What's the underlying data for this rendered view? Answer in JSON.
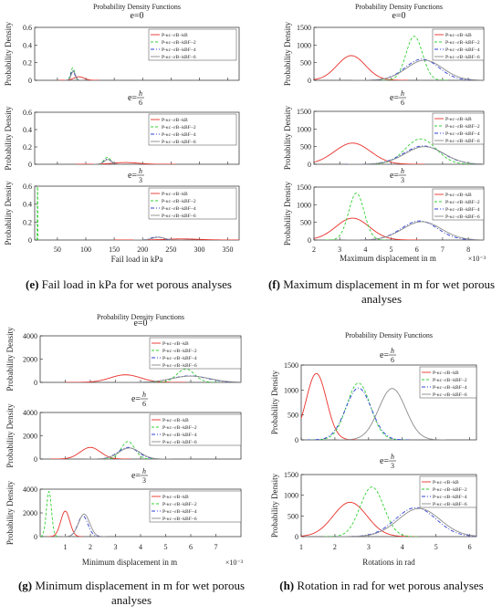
{
  "colors": {
    "red": "#e8302a",
    "green": "#33d033",
    "blue": "#2e3fd6",
    "gray": "#8a8a8a",
    "axis": "#262626"
  },
  "legend_labels": [
    "P-κc−εB−kB",
    "P-κc−εB−kBF−2",
    "P-κc−εB−kBF−4",
    "P-κc−εB−kBF−6"
  ],
  "captions": [
    {
      "letter": "(e)",
      "text": "Fail load in kPa for wet porous analyses"
    },
    {
      "letter": "(f)",
      "text": "Maximum displacement in m for wet porous analyses"
    },
    {
      "letter": "(g)",
      "text": "Minimum displacement in m for wet porous analyses"
    },
    {
      "letter": "(h)",
      "text": "Rotation in rad for wet porous analyses"
    }
  ],
  "chart_data": [
    {
      "type": "line",
      "title": "Probability Density Functions",
      "xlabel": "Fail load in kPa",
      "ylabel": "Probability Density",
      "xlim": [
        10,
        370
      ],
      "xticks": [
        50,
        100,
        150,
        200,
        250,
        300,
        350
      ],
      "xtick_labels": [
        "50",
        "100",
        "150",
        "200",
        "250",
        "300",
        "350"
      ],
      "x_exponent": "",
      "panels": [
        {
          "label": "e=0",
          "ylim": [
            0,
            0.6
          ],
          "yticks": [
            0,
            0.2,
            0.4,
            0.6
          ],
          "ytick_labels": [
            "0",
            "0.2",
            "0.4",
            "0.6"
          ],
          "series": [
            {
              "mu": 88,
              "sd": 9,
              "peak": 0.04
            },
            {
              "mu": 77,
              "sd": 3.5,
              "peak": 0.14
            },
            {
              "mu": 77,
              "sd": 3.5,
              "peak": 0.11
            },
            {
              "mu": 78,
              "sd": 3.8,
              "peak": 0.1
            }
          ]
        },
        {
          "label": "e=h/6",
          "ylim": [
            0,
            0.6
          ],
          "yticks": [
            0,
            0.2,
            0.4,
            0.6
          ],
          "ytick_labels": [
            "0",
            "0.2",
            "0.4",
            "0.6"
          ],
          "series": [
            {
              "mu": 170,
              "sd": 22,
              "peak": 0.02
            },
            {
              "mu": 138,
              "sd": 6,
              "peak": 0.08
            },
            {
              "mu": 138,
              "sd": 6,
              "peak": 0.06
            },
            {
              "mu": 139,
              "sd": 6.5,
              "peak": 0.055
            }
          ]
        },
        {
          "label": "e=h/3",
          "ylim": [
            0,
            0.6
          ],
          "yticks": [
            0,
            0.2,
            0.4,
            0.6
          ],
          "ytick_labels": [
            "0",
            "0.2",
            "0.4",
            "0.6"
          ],
          "series": [
            {
              "mu": 270,
              "sd": 30,
              "peak": 0.012
            },
            {
              "mu": 15,
              "sd": 0.35,
              "peak": 0.62
            },
            {
              "mu": 225,
              "sd": 10,
              "peak": 0.035
            },
            {
              "mu": 228,
              "sd": 11,
              "peak": 0.03
            }
          ]
        }
      ]
    },
    {
      "type": "line",
      "title": "Probability Density Functions",
      "xlabel": "Maximum displacement in m",
      "ylabel": "Probability Density",
      "xlim": [
        2,
        8.6
      ],
      "xticks": [
        2,
        3,
        4,
        5,
        6,
        7,
        8
      ],
      "xtick_labels": [
        "2",
        "3",
        "4",
        "5",
        "6",
        "7",
        "8"
      ],
      "x_exponent": "×10⁻³",
      "panels": [
        {
          "label": "e=0",
          "ylim": [
            0,
            1500
          ],
          "yticks": [
            0,
            500,
            1000,
            1500
          ],
          "ytick_labels": [
            "0",
            "500",
            "1000",
            "1500"
          ],
          "series": [
            {
              "mu": 3.45,
              "sd": 0.55,
              "peak": 700
            },
            {
              "mu": 5.9,
              "sd": 0.32,
              "peak": 1250
            },
            {
              "mu": 6.2,
              "sd": 0.65,
              "peak": 600
            },
            {
              "mu": 6.3,
              "sd": 0.7,
              "peak": 570
            }
          ]
        },
        {
          "label": "e=h/6",
          "ylim": [
            0,
            1500
          ],
          "yticks": [
            0,
            500,
            1000,
            1500
          ],
          "ytick_labels": [
            "0",
            "500",
            "1000",
            "1500"
          ],
          "series": [
            {
              "mu": 3.5,
              "sd": 0.7,
              "peak": 600
            },
            {
              "mu": 6.15,
              "sd": 0.6,
              "peak": 720
            },
            {
              "mu": 6.25,
              "sd": 0.75,
              "peak": 520
            },
            {
              "mu": 6.3,
              "sd": 0.75,
              "peak": 500
            }
          ]
        },
        {
          "label": "e=h/3",
          "ylim": [
            0,
            1500
          ],
          "yticks": [
            0,
            500,
            1000,
            1500
          ],
          "ytick_labels": [
            "0",
            "500",
            "1000",
            "1500"
          ],
          "series": [
            {
              "mu": 3.5,
              "sd": 0.65,
              "peak": 620
            },
            {
              "mu": 3.65,
              "sd": 0.3,
              "peak": 1330
            },
            {
              "mu": 6.1,
              "sd": 0.7,
              "peak": 540
            },
            {
              "mu": 6.2,
              "sd": 0.75,
              "peak": 520
            }
          ]
        }
      ]
    },
    {
      "type": "line",
      "title": "Probability Density Functions",
      "xlabel": "Minimum displacement in m",
      "ylabel": "Probability Density",
      "xlim": [
        0,
        8
      ],
      "xticks": [
        1,
        2,
        3,
        4,
        5,
        6,
        7
      ],
      "xtick_labels": [
        "1",
        "2",
        "3",
        "4",
        "5",
        "6",
        "7"
      ],
      "x_exponent": "×10⁻³",
      "panels": [
        {
          "label": "e=0",
          "ylim": [
            0,
            4000
          ],
          "yticks": [
            0,
            2000,
            4000
          ],
          "ytick_labels": [
            "0",
            "2000",
            "4000"
          ],
          "series": [
            {
              "mu": 3.4,
              "sd": 0.6,
              "peak": 650
            },
            {
              "mu": 5.8,
              "sd": 0.35,
              "peak": 1150
            },
            {
              "mu": 5.95,
              "sd": 0.7,
              "peak": 560
            },
            {
              "mu": 6.0,
              "sd": 0.75,
              "peak": 540
            }
          ]
        },
        {
          "label": "e=h/6",
          "ylim": [
            0,
            4000
          ],
          "yticks": [
            0,
            2000,
            4000
          ],
          "ytick_labels": [
            "0",
            "2000",
            "4000"
          ],
          "series": [
            {
              "mu": 2.0,
              "sd": 0.4,
              "peak": 1000
            },
            {
              "mu": 3.5,
              "sd": 0.27,
              "peak": 1500
            },
            {
              "mu": 3.5,
              "sd": 0.4,
              "peak": 1000
            },
            {
              "mu": 3.55,
              "sd": 0.42,
              "peak": 950
            }
          ]
        },
        {
          "label": "e=h/3",
          "ylim": [
            0,
            4000
          ],
          "yticks": [
            0,
            2000,
            4000
          ],
          "ytick_labels": [
            "0",
            "2000",
            "4000"
          ],
          "series": [
            {
              "mu": 1.0,
              "sd": 0.18,
              "peak": 2150
            },
            {
              "mu": 0.35,
              "sd": 0.1,
              "peak": 3800
            },
            {
              "mu": 1.7,
              "sd": 0.2,
              "peak": 1750
            },
            {
              "mu": 1.75,
              "sd": 0.22,
              "peak": 1900
            }
          ]
        }
      ]
    },
    {
      "type": "line",
      "title": "Probability Density Functions",
      "xlabel": "Rotations in rad",
      "ylabel": "Probability Density",
      "xlim": [
        1,
        6.2
      ],
      "xticks": [
        1,
        2,
        3,
        4,
        5,
        6
      ],
      "xtick_labels": [
        "1",
        "2",
        "3",
        "4",
        "5",
        "6"
      ],
      "x_exponent": "",
      "panels": [
        {
          "label": "e=h/6",
          "ylim": [
            0,
            1500
          ],
          "yticks": [
            0,
            500,
            1000,
            1500
          ],
          "ytick_labels": [
            "0",
            "500",
            "1000",
            "1500"
          ],
          "series": [
            {
              "mu": 1.45,
              "sd": 0.3,
              "peak": 1330
            },
            {
              "mu": 2.7,
              "sd": 0.35,
              "peak": 1140
            },
            {
              "mu": 2.7,
              "sd": 0.38,
              "peak": 1040
            },
            {
              "mu": 3.7,
              "sd": 0.4,
              "peak": 1030
            }
          ]
        },
        {
          "label": "e=h/3",
          "ylim": [
            0,
            1500
          ],
          "yticks": [
            0,
            500,
            1000,
            1500
          ],
          "ytick_labels": [
            "0",
            "500",
            "1000",
            "1500"
          ],
          "series": [
            {
              "mu": 2.45,
              "sd": 0.5,
              "peak": 830
            },
            {
              "mu": 3.1,
              "sd": 0.35,
              "peak": 1200
            },
            {
              "mu": 4.4,
              "sd": 0.6,
              "peak": 700
            },
            {
              "mu": 4.5,
              "sd": 0.62,
              "peak": 680
            }
          ]
        }
      ]
    }
  ]
}
